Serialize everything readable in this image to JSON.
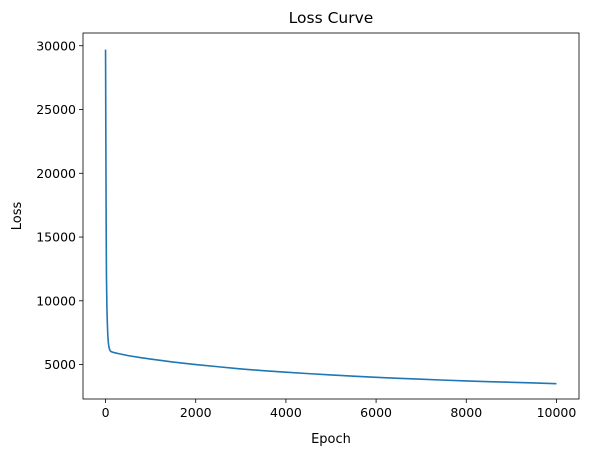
{
  "chart_data": {
    "type": "line",
    "title": "Loss Curve",
    "xlabel": "Epoch",
    "ylabel": "Loss",
    "xlim": [
      -500,
      10500
    ],
    "ylim": [
      2300,
      31000
    ],
    "xticks": [
      0,
      2000,
      4000,
      6000,
      8000,
      10000
    ],
    "yticks": [
      5000,
      10000,
      15000,
      20000,
      25000,
      30000
    ],
    "grid": false,
    "series_color": "#1f77b4",
    "series": [
      {
        "x": [
          0,
          5,
          10,
          15,
          20,
          30,
          40,
          50,
          60,
          70,
          80,
          100,
          120,
          150,
          200,
          300,
          500,
          750,
          1000,
          1500,
          2000,
          2500,
          3000,
          3500,
          4000,
          4500,
          5000,
          5500,
          6000,
          6500,
          7000,
          7500,
          8000,
          8500,
          9000,
          9500,
          10000
        ],
        "y": [
          29700,
          24500,
          19500,
          15000,
          12000,
          9500,
          8200,
          7300,
          6800,
          6500,
          6300,
          6100,
          6020,
          5980,
          5930,
          5850,
          5700,
          5560,
          5430,
          5200,
          5000,
          4830,
          4660,
          4520,
          4400,
          4290,
          4190,
          4090,
          4000,
          3920,
          3850,
          3780,
          3720,
          3660,
          3610,
          3560,
          3500
        ]
      }
    ]
  }
}
